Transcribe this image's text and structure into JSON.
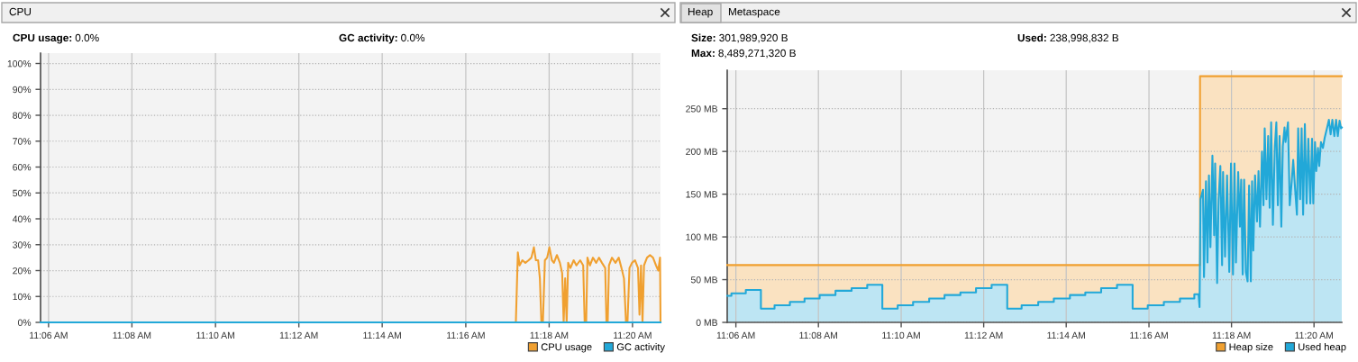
{
  "chart_data": [
    {
      "type": "line",
      "title": "CPU",
      "annotations": [
        "CPU usage: 0.0%",
        "GC activity: 0.0%"
      ],
      "xlim": [
        11.0968,
        11.3445
      ],
      "xticks": [
        {
          "value": 11.1,
          "label": "11:06 AM"
        },
        {
          "value": 11.1333,
          "label": "11:08 AM"
        },
        {
          "value": 11.1667,
          "label": "11:10 AM"
        },
        {
          "value": 11.2,
          "label": "11:12 AM"
        },
        {
          "value": 11.2333,
          "label": "11:14 AM"
        },
        {
          "value": 11.2667,
          "label": "11:16 AM"
        },
        {
          "value": 11.3,
          "label": "11:18 AM"
        },
        {
          "value": 11.3333,
          "label": "11:20 AM"
        }
      ],
      "ylim": [
        0,
        104
      ],
      "yticks": [
        {
          "value": 0,
          "label": "0%"
        },
        {
          "value": 10,
          "label": "10%"
        },
        {
          "value": 20,
          "label": "20%"
        },
        {
          "value": 30,
          "label": "30%"
        },
        {
          "value": 40,
          "label": "40%"
        },
        {
          "value": 50,
          "label": "50%"
        },
        {
          "value": 60,
          "label": "60%"
        },
        {
          "value": 70,
          "label": "70%"
        },
        {
          "value": 80,
          "label": "80%"
        },
        {
          "value": 90,
          "label": "90%"
        },
        {
          "value": 100,
          "label": "100%"
        }
      ],
      "grid": true,
      "legend": "bottom right",
      "series": [
        {
          "name": "CPU usage",
          "color": "#f0a030",
          "x": [
            11.0968,
            11.2867,
            11.2875,
            11.2882,
            11.2893,
            11.2905,
            11.2918,
            11.2929,
            11.2939,
            11.2947,
            11.2956,
            11.2963,
            11.2969,
            11.2975,
            11.2983,
            11.2992,
            11.3001,
            11.3011,
            11.3019,
            11.3031,
            11.3043,
            11.3052,
            11.3058,
            11.3064,
            11.307,
            11.3076,
            11.3085,
            11.3098,
            11.3109,
            11.3124,
            11.3136,
            11.3142,
            11.3148,
            11.3153,
            11.3163,
            11.3175,
            11.3188,
            11.3199,
            11.3211,
            11.3224,
            11.3229,
            11.3234,
            11.3239,
            11.3251,
            11.3265,
            11.3278,
            11.3289,
            11.3299,
            11.3307,
            11.3313,
            11.3321,
            11.3331,
            11.3343,
            11.3355,
            11.3361,
            11.3367,
            11.3373,
            11.3379,
            11.3391,
            11.3403,
            11.3415,
            11.3427,
            11.3436,
            11.3443,
            11.3445
          ],
          "values": [
            0,
            0,
            27,
            22,
            24,
            23,
            24,
            25,
            29,
            24,
            24,
            17,
            0,
            0,
            24,
            25,
            29,
            24,
            23,
            26,
            23,
            19,
            0,
            17,
            0,
            23,
            21,
            24,
            22,
            24,
            22,
            0,
            0,
            25,
            22,
            25,
            23,
            25,
            23,
            21,
            0,
            0,
            22,
            25,
            23,
            25,
            21,
            17,
            0,
            0,
            21,
            23,
            24,
            21,
            3,
            22,
            0,
            22,
            25,
            26,
            25,
            22,
            20,
            25,
            0
          ]
        },
        {
          "name": "GC activity",
          "color": "#22a8d8",
          "x": [
            11.0968,
            11.3445
          ],
          "values": [
            0,
            0
          ]
        }
      ]
    },
    {
      "type": "area",
      "title": "Heap",
      "subtitle": "Metaspace",
      "annotations": [
        "Size: 301,989,920 B",
        "Used: 238,998,832 B",
        "Max: 8,489,271,320 B"
      ],
      "xlim": [
        11.0965,
        11.3445
      ],
      "xticks": [
        {
          "value": 11.1,
          "label": "11:06 AM"
        },
        {
          "value": 11.1333,
          "label": "11:08 AM"
        },
        {
          "value": 11.1667,
          "label": "11:10 AM"
        },
        {
          "value": 11.2,
          "label": "11:12 AM"
        },
        {
          "value": 11.2333,
          "label": "11:14 AM"
        },
        {
          "value": 11.2667,
          "label": "11:16 AM"
        },
        {
          "value": 11.3,
          "label": "11:18 AM"
        },
        {
          "value": 11.3333,
          "label": "11:20 AM"
        }
      ],
      "ylim": [
        0,
        295
      ],
      "yticks": [
        {
          "value": 0,
          "label": "0 MB"
        },
        {
          "value": 50,
          "label": "50 MB"
        },
        {
          "value": 100,
          "label": "100 MB"
        },
        {
          "value": 150,
          "label": "150 MB"
        },
        {
          "value": 200,
          "label": "200 MB"
        },
        {
          "value": 250,
          "label": "250 MB"
        }
      ],
      "grid": true,
      "legend": "bottom right",
      "series": [
        {
          "name": "Heap size",
          "color": "#f0a030",
          "x": [
            11.0965,
            11.2873,
            11.2873,
            11.3445
          ],
          "values": [
            67,
            67,
            288,
            288
          ]
        },
        {
          "name": "Used heap",
          "color": "#22a8d8",
          "x": [
            11.0965,
            11.0982,
            11.0982,
            11.104,
            11.104,
            11.1101,
            11.1101,
            11.1156,
            11.1156,
            11.1218,
            11.1218,
            11.1277,
            11.1277,
            11.1338,
            11.1338,
            11.1402,
            11.1402,
            11.1467,
            11.1467,
            11.153,
            11.153,
            11.1591,
            11.1591,
            11.1653,
            11.1653,
            11.1715,
            11.1715,
            11.178,
            11.178,
            11.1842,
            11.1842,
            11.1906,
            11.1906,
            11.1969,
            11.1969,
            11.2032,
            11.2032,
            11.2095,
            11.2095,
            11.2153,
            11.2153,
            11.222,
            11.222,
            11.2283,
            11.2283,
            11.2348,
            11.2348,
            11.241,
            11.241,
            11.2474,
            11.2474,
            11.2538,
            11.2538,
            11.2601,
            11.2601,
            11.2662,
            11.2662,
            11.2727,
            11.2727,
            11.2792,
            11.2792,
            11.285,
            11.285,
            11.2867,
            11.2871,
            11.2875,
            11.2885,
            11.2889,
            11.2897,
            11.2903,
            11.2909,
            11.2915,
            11.2923,
            11.293,
            11.2934,
            11.2942,
            11.2948,
            11.2955,
            11.2962,
            11.2966,
            11.2974,
            11.2982,
            11.2991,
            11.2998,
            11.3006,
            11.3012,
            11.3018,
            11.3027,
            11.3034,
            11.3039,
            11.3045,
            11.3051,
            11.3058,
            11.3065,
            11.3071,
            11.3078,
            11.3083,
            11.3088,
            11.3095,
            11.3103,
            11.3109,
            11.3115,
            11.3123,
            11.3129,
            11.3134,
            11.3141,
            11.3148,
            11.3154,
            11.316,
            11.3167,
            11.3175,
            11.3181,
            11.3187,
            11.3194,
            11.3201,
            11.3207,
            11.3214,
            11.3218,
            11.3228,
            11.3235,
            11.3243,
            11.3249,
            11.3257,
            11.3264,
            11.3269,
            11.3277,
            11.3283,
            11.3289,
            11.3296,
            11.3303,
            11.331,
            11.3318,
            11.3325,
            11.333,
            11.3337,
            11.3342,
            11.3349,
            11.3354,
            11.3361,
            11.3369,
            11.3376,
            11.3386,
            11.3393,
            11.34,
            11.3407,
            11.3415,
            11.3422,
            11.3429,
            11.3436,
            11.3442,
            11.3445
          ],
          "values": [
            31,
            31,
            34,
            34,
            38,
            38,
            16,
            16,
            20,
            20,
            24,
            24,
            28,
            28,
            32,
            32,
            37,
            37,
            40,
            40,
            44,
            44,
            16,
            16,
            20,
            20,
            24,
            24,
            28,
            28,
            32,
            32,
            35,
            35,
            40,
            40,
            44,
            44,
            16,
            16,
            20,
            20,
            24,
            24,
            28,
            28,
            32,
            32,
            35,
            35,
            40,
            40,
            44,
            44,
            16,
            16,
            20,
            20,
            24,
            24,
            28,
            28,
            33,
            33,
            18,
            144,
            155,
            53,
            165,
            70,
            172,
            88,
            195,
            102,
            186,
            46,
            144,
            183,
            67,
            176,
            77,
            172,
            59,
            186,
            56,
            186,
            70,
            176,
            112,
            167,
            56,
            167,
            59,
            48,
            160,
            48,
            165,
            84,
            172,
            118,
            177,
            112,
            200,
            137,
            227,
            144,
            218,
            134,
            234,
            114,
            206,
            234,
            137,
            218,
            112,
            206,
            228,
            211,
            234,
            137,
            165,
            190,
            155,
            126,
            227,
            144,
            227,
            126,
            232,
            139,
            215,
            139,
            215,
            139,
            211,
            177,
            204,
            183,
            211,
            204,
            216,
            228,
            237,
            220,
            237,
            218,
            237,
            218,
            236,
            227,
            228
          ]
        }
      ]
    }
  ]
}
